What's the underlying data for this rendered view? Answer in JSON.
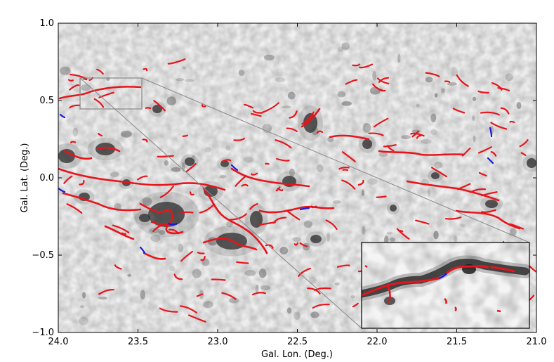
{
  "figure": {
    "xlabel": "Gal. Lon. (Deg.)",
    "ylabel": "Gal. Lat. (Deg.)",
    "x_ticks": [
      "24.0",
      "23.5",
      "23.0",
      "22.5",
      "22.0",
      "21.5",
      "21.0"
    ],
    "y_ticks": [
      "1.0",
      "0.5",
      "0.0",
      "−0.5",
      "−1.0"
    ],
    "xlim": [
      24.0,
      21.0
    ],
    "ylim": [
      -1.0,
      1.0
    ],
    "x_tick_values": [
      24.0,
      23.5,
      23.0,
      22.5,
      22.0,
      21.5,
      21.0
    ],
    "y_tick_values": [
      1.0,
      0.5,
      0.0,
      -0.5,
      -1.0
    ],
    "zoom_region_lon": [
      23.9,
      23.5
    ],
    "zoom_region_lat": [
      0.45,
      0.65
    ],
    "colors": {
      "background_map": "#e6e6e6",
      "dense_emission": "#111111",
      "filament_spine": "#e8141b",
      "filament_branch": "#1a1adb",
      "frame": "#000000",
      "zoom_lines": "#888888"
    }
  }
}
